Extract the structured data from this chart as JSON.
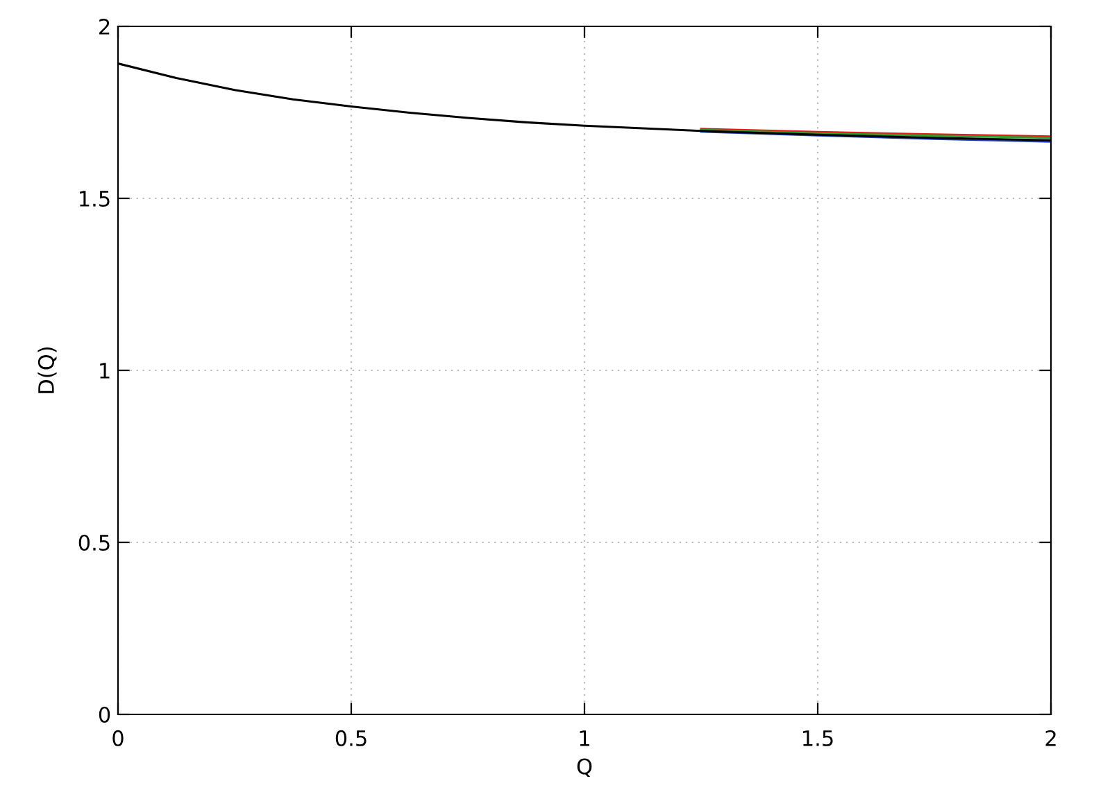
{
  "chart_data": {
    "type": "line",
    "xlabel": "Q",
    "ylabel": "D(Q)",
    "xlim": [
      0,
      2
    ],
    "ylim": [
      0,
      2
    ],
    "xticks": [
      0,
      0.5,
      1,
      1.5,
      2
    ],
    "yticks": [
      0,
      0.5,
      1,
      1.5,
      2
    ],
    "grid": true,
    "marker": "none",
    "line_style": "solid",
    "x": [
      0,
      0.125,
      0.25,
      0.375,
      0.5,
      0.625,
      0.75,
      0.875,
      1,
      1.25,
      1.5,
      1.75,
      2
    ],
    "series": [
      {
        "color": "#e41a1c",
        "values": [
          null,
          null,
          null,
          null,
          null,
          null,
          null,
          null,
          null,
          1.702,
          1.693,
          1.686,
          1.68
        ]
      },
      {
        "color": "#2ca02c",
        "values": [
          null,
          null,
          null,
          null,
          null,
          null,
          null,
          null,
          null,
          1.699,
          1.689,
          1.682,
          1.676
        ]
      },
      {
        "color": "#1f3fbf",
        "values": [
          null,
          null,
          null,
          null,
          null,
          null,
          null,
          null,
          null,
          1.694,
          1.683,
          1.673,
          1.665
        ]
      },
      {
        "color": "#000000",
        "values": [
          1.892,
          1.85,
          1.815,
          1.788,
          1.767,
          1.749,
          1.734,
          1.721,
          1.711,
          1.696,
          1.685,
          1.676,
          1.669
        ]
      }
    ]
  }
}
